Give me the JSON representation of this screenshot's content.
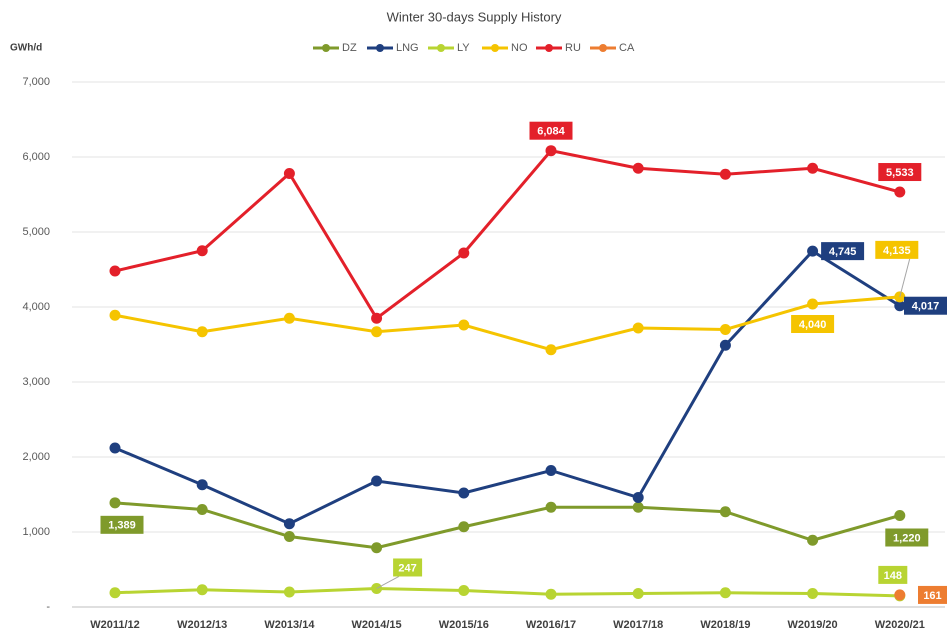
{
  "chart_data": {
    "type": "line",
    "title": "Winter 30-days Supply History",
    "y_label": "GWh/d",
    "categories": [
      "W2011/12",
      "W2012/13",
      "W2013/14",
      "W2014/15",
      "W2015/16",
      "W2016/17",
      "W2017/18",
      "W2018/19",
      "W2019/20",
      "W2020/21"
    ],
    "series": [
      {
        "name": "DZ",
        "color": "#7f9a2b",
        "values": [
          1389,
          1300,
          940,
          790,
          1070,
          1330,
          1330,
          1270,
          890,
          1220
        ],
        "value_labels": [
          "1,389",
          null,
          null,
          null,
          null,
          null,
          null,
          null,
          null,
          "1,220"
        ]
      },
      {
        "name": "LNG",
        "color": "#1f3f7f",
        "values": [
          2120,
          1630,
          1110,
          1680,
          1520,
          1820,
          1460,
          3490,
          4745,
          4017
        ],
        "value_labels": [
          null,
          null,
          null,
          null,
          null,
          null,
          null,
          null,
          "4,745",
          "4,017"
        ]
      },
      {
        "name": "LY",
        "color": "#b8d432",
        "values": [
          190,
          230,
          200,
          247,
          220,
          170,
          180,
          190,
          180,
          148
        ],
        "value_labels": [
          null,
          null,
          null,
          "247",
          null,
          null,
          null,
          null,
          null,
          "148"
        ]
      },
      {
        "name": "NO",
        "color": "#f5c400",
        "values": [
          3890,
          3670,
          3850,
          3670,
          3760,
          3430,
          3720,
          3700,
          4040,
          4135
        ],
        "value_labels": [
          null,
          null,
          null,
          null,
          null,
          null,
          null,
          null,
          "4,040",
          "4,135"
        ]
      },
      {
        "name": "RU",
        "color": "#e3202a",
        "values": [
          4480,
          4750,
          5780,
          3850,
          4720,
          6084,
          5850,
          5770,
          5850,
          5533
        ],
        "value_labels": [
          null,
          null,
          null,
          null,
          null,
          "6,084",
          null,
          null,
          null,
          "5,533"
        ]
      },
      {
        "name": "CA",
        "color": "#ed7d31",
        "values": [
          null,
          null,
          null,
          null,
          null,
          null,
          null,
          null,
          null,
          161
        ],
        "value_labels": [
          null,
          null,
          null,
          null,
          null,
          null,
          null,
          null,
          null,
          "161"
        ]
      }
    ],
    "ylim": [
      0,
      7000
    ],
    "yticks": [
      {
        "value": 0,
        "label": "-"
      },
      {
        "value": 1000,
        "label": "1,000"
      },
      {
        "value": 2000,
        "label": "2,000"
      },
      {
        "value": 3000,
        "label": "3,000"
      },
      {
        "value": 4000,
        "label": "4,000"
      },
      {
        "value": 5000,
        "label": "5,000"
      },
      {
        "value": 6000,
        "label": "6,000"
      },
      {
        "value": 7000,
        "label": "7,000"
      }
    ],
    "grid": true,
    "legend": "top"
  }
}
